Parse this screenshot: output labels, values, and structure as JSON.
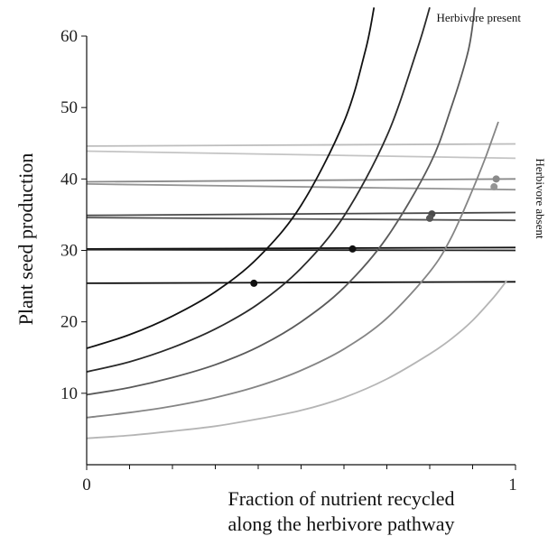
{
  "chart_data": {
    "type": "line",
    "title": "",
    "xlabel_lines": [
      "Fraction of nutrient recycled",
      "along the herbivore pathway"
    ],
    "ylabel": "Plant seed production",
    "xlim": [
      0,
      1
    ],
    "ylim": [
      0,
      60
    ],
    "x_ticks": [
      {
        "value": 0,
        "label": "0"
      },
      {
        "value": 1,
        "label": "1"
      }
    ],
    "x_minor_ticks": [
      0.1,
      0.2,
      0.3,
      0.4,
      0.5,
      0.6,
      0.7,
      0.8,
      0.9
    ],
    "y_ticks": [
      {
        "value": 10,
        "label": "10"
      },
      {
        "value": 20,
        "label": "20"
      },
      {
        "value": 30,
        "label": "30"
      },
      {
        "value": 40,
        "label": "40"
      },
      {
        "value": 50,
        "label": "50"
      },
      {
        "value": 60,
        "label": "60"
      }
    ],
    "grid": false,
    "annotations": {
      "herbivore_present": "Herbivore present",
      "herbivore_absent": "Herbivore absent"
    },
    "herbivore_present_curves": [
      {
        "color": "#111111",
        "points": [
          [
            0,
            16.3
          ],
          [
            0.1,
            18.2
          ],
          [
            0.2,
            20.8
          ],
          [
            0.3,
            24.2
          ],
          [
            0.4,
            29.0
          ],
          [
            0.5,
            36.3
          ],
          [
            0.6,
            48.0
          ],
          [
            0.65,
            58.0
          ],
          [
            0.67,
            64.0
          ]
        ]
      },
      {
        "color": "#2a2a2a",
        "points": [
          [
            0,
            13.0
          ],
          [
            0.1,
            14.4
          ],
          [
            0.2,
            16.4
          ],
          [
            0.3,
            19.0
          ],
          [
            0.4,
            22.5
          ],
          [
            0.5,
            27.5
          ],
          [
            0.6,
            34.8
          ],
          [
            0.7,
            46.0
          ],
          [
            0.77,
            58.0
          ],
          [
            0.8,
            64.0
          ]
        ]
      },
      {
        "color": "#5a5a5a",
        "points": [
          [
            0,
            9.8
          ],
          [
            0.1,
            10.8
          ],
          [
            0.2,
            12.2
          ],
          [
            0.3,
            14.0
          ],
          [
            0.4,
            16.5
          ],
          [
            0.5,
            20.0
          ],
          [
            0.6,
            24.8
          ],
          [
            0.7,
            31.8
          ],
          [
            0.8,
            42.0
          ],
          [
            0.85,
            50.0
          ],
          [
            0.89,
            58.0
          ],
          [
            0.905,
            64.0
          ]
        ]
      },
      {
        "color": "#858585",
        "points": [
          [
            0,
            6.6
          ],
          [
            0.1,
            7.3
          ],
          [
            0.2,
            8.2
          ],
          [
            0.3,
            9.4
          ],
          [
            0.4,
            11.0
          ],
          [
            0.5,
            13.2
          ],
          [
            0.6,
            16.2
          ],
          [
            0.7,
            20.5
          ],
          [
            0.8,
            27.0
          ],
          [
            0.85,
            31.8
          ],
          [
            0.9,
            38.5
          ],
          [
            0.93,
            43.0
          ],
          [
            0.96,
            48.0
          ]
        ]
      },
      {
        "color": "#b5b5b5",
        "points": [
          [
            0,
            3.7
          ],
          [
            0.1,
            4.1
          ],
          [
            0.2,
            4.7
          ],
          [
            0.3,
            5.4
          ],
          [
            0.4,
            6.4
          ],
          [
            0.5,
            7.6
          ],
          [
            0.6,
            9.4
          ],
          [
            0.7,
            12.0
          ],
          [
            0.8,
            15.5
          ],
          [
            0.85,
            17.6
          ],
          [
            0.9,
            20.2
          ],
          [
            0.95,
            23.5
          ],
          [
            0.98,
            25.8
          ]
        ]
      }
    ],
    "herbivore_absent_lines": [
      {
        "color": "#bdbdbd",
        "points": [
          [
            0,
            44.6
          ],
          [
            1,
            44.9
          ]
        ]
      },
      {
        "color": "#c4c4c4",
        "points": [
          [
            0,
            43.9
          ],
          [
            1,
            42.9
          ]
        ]
      },
      {
        "color": "#8a8a8a",
        "points": [
          [
            0,
            39.6
          ],
          [
            1,
            40.0
          ]
        ]
      },
      {
        "color": "#959595",
        "points": [
          [
            0,
            39.3
          ],
          [
            1,
            38.5
          ]
        ]
      },
      {
        "color": "#4a4a4a",
        "points": [
          [
            0,
            34.9
          ],
          [
            1,
            35.3
          ]
        ]
      },
      {
        "color": "#555555",
        "points": [
          [
            0,
            34.6
          ],
          [
            1,
            34.2
          ]
        ]
      },
      {
        "color": "#111111",
        "points": [
          [
            0,
            30.2
          ],
          [
            1,
            30.4
          ]
        ]
      },
      {
        "color": "#222222",
        "points": [
          [
            0,
            30.1
          ],
          [
            1,
            30.0
          ]
        ]
      },
      {
        "color": "#111111",
        "points": [
          [
            0,
            25.4
          ],
          [
            1,
            25.6
          ]
        ]
      }
    ],
    "intersection_points": [
      {
        "x": 0.39,
        "y": 25.4,
        "color": "#111111"
      },
      {
        "x": 0.62,
        "y": 30.2,
        "color": "#111111"
      },
      {
        "x": 0.805,
        "y": 35.1,
        "color": "#4a4a4a"
      },
      {
        "x": 0.8,
        "y": 34.5,
        "color": "#555555"
      },
      {
        "x": 0.955,
        "y": 40.0,
        "color": "#8a8a8a"
      },
      {
        "x": 0.95,
        "y": 38.9,
        "color": "#959595"
      }
    ]
  }
}
